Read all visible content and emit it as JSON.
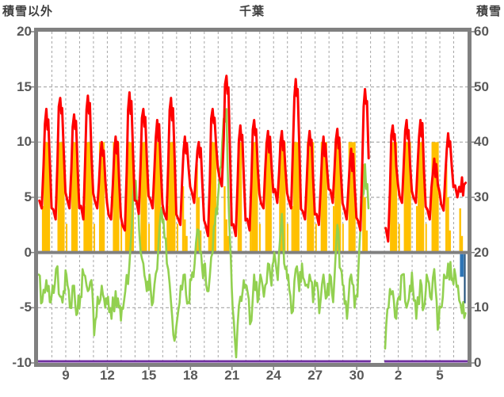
{
  "title": "千葉",
  "chart_data": {
    "type": "line",
    "title": "千葉",
    "x_unit": "day",
    "x_range": [
      "1/7",
      "2/6"
    ],
    "grid": true,
    "left_axis": {
      "label": "積雪以外",
      "min": -10,
      "max": 20,
      "ticks": [
        20,
        15,
        10,
        5,
        0,
        -5,
        -10
      ]
    },
    "right_axis": {
      "label": "積雪",
      "min": 0,
      "max": 60,
      "ticks": [
        60,
        50,
        40,
        30,
        20,
        10,
        0
      ]
    },
    "x_axis": {
      "tick_labels": [
        "9",
        "12",
        "15",
        "18",
        "21",
        "24",
        "27",
        "30",
        "2",
        "5"
      ],
      "tick_day_indices": [
        2,
        5,
        8,
        11,
        14,
        17,
        20,
        23,
        26,
        29
      ]
    },
    "colors": {
      "red_line": "#FF0000",
      "green_line": "#92D050",
      "yellow_bars": "#FFC000",
      "blue_bar": "#2E75B6",
      "dark_blue_bar": "#1F4E79",
      "purple_line": "#7030A0",
      "axis": "#808080",
      "gridline": "#A6A6A6",
      "tick_text": "#595959",
      "title_text": "#3F3F3F"
    },
    "series": [
      {
        "key": "red_line",
        "type": "line",
        "axis": "left"
      },
      {
        "key": "green_line",
        "type": "line",
        "axis": "left"
      },
      {
        "key": "yellow_bars",
        "type": "bar",
        "axis": "left",
        "bar_max": 10
      },
      {
        "key": "blue_bars",
        "type": "bar",
        "axis": "left",
        "direction": "down"
      },
      {
        "key": "purple_line",
        "type": "line",
        "axis": "right",
        "constant_value": 0
      }
    ],
    "missing_dates": [
      "1/31"
    ],
    "days": [
      {
        "date": "1/7",
        "tmax": 13,
        "tmin": 4,
        "dew": [
          -2,
          -4.5,
          -2.5,
          -4.5
        ],
        "sun": 9,
        "snow": 0
      },
      {
        "date": "1/8",
        "tmax": 14,
        "tmin": 3,
        "dew": [
          -3,
          -1.5,
          -4,
          -3.5
        ],
        "sun": 10,
        "snow": 0
      },
      {
        "date": "1/9",
        "tmax": 12.5,
        "tmin": 4,
        "dew": [
          -2,
          -5,
          -3,
          -5.5
        ],
        "sun": 9,
        "snow": 0
      },
      {
        "date": "1/10",
        "tmax": 14.2,
        "tmin": 3,
        "dew": [
          -4,
          -2,
          -3.5,
          -2.5
        ],
        "sun": 10,
        "snow": 0
      },
      {
        "date": "1/11",
        "tmax": 10,
        "tmin": 4,
        "dew": [
          -7.5,
          -4,
          -3,
          -5
        ],
        "sun": 8,
        "snow": 0
      },
      {
        "date": "1/12",
        "tmax": 10.5,
        "tmin": 3,
        "dew": [
          -4,
          -6,
          -3.5,
          -5
        ],
        "sun": 9,
        "snow": 0
      },
      {
        "date": "1/13",
        "tmax": 14.5,
        "tmin": 2,
        "dew": [
          -5,
          -3.5,
          -1,
          5
        ],
        "sun": 10,
        "snow": 0
      },
      {
        "date": "1/14",
        "tmax": 13,
        "tmin": 3.5,
        "dew": [
          6.5,
          2,
          -1,
          -3.5
        ],
        "sun": 9,
        "snow": 0
      },
      {
        "date": "1/15",
        "tmax": 12,
        "tmin": 4,
        "dew": [
          -2,
          -4.5,
          -1.5,
          3.5
        ],
        "sun": 9,
        "snow": 0
      },
      {
        "date": "1/16",
        "tmax": 14,
        "tmin": 3,
        "dew": [
          3,
          -1,
          -4.5,
          -8
        ],
        "sun": 10,
        "snow": 0
      },
      {
        "date": "1/17",
        "tmax": 10.5,
        "tmin": 2.5,
        "dew": [
          -6,
          -3,
          -2,
          -4.5
        ],
        "sun": 3,
        "snow": 0
      },
      {
        "date": "1/18",
        "tmax": 10,
        "tmin": 4.5,
        "dew": [
          -2.5,
          -1,
          2,
          -1.5
        ],
        "sun": 4,
        "snow": 0
      },
      {
        "date": "1/19",
        "tmax": 13,
        "tmin": 1.5,
        "dew": [
          -1,
          -3.5,
          0,
          4
        ],
        "sun": 9,
        "snow": 0
      },
      {
        "date": "1/20",
        "tmax": 16,
        "tmin": 6,
        "dew": [
          6,
          10,
          13,
          1
        ],
        "sun": 3,
        "snow": 0
      },
      {
        "date": "1/21",
        "tmax": 11.5,
        "tmin": 1.5,
        "dew": [
          -5,
          -9.5,
          -4,
          -2.5
        ],
        "sun": 6,
        "snow": 0
      },
      {
        "date": "1/22",
        "tmax": 12,
        "tmin": 2,
        "dew": [
          -3,
          -6.5,
          -2,
          -4.5
        ],
        "sun": 9,
        "snow": 0
      },
      {
        "date": "1/23",
        "tmax": 11,
        "tmin": 4,
        "dew": [
          -2,
          -4,
          -1,
          -3
        ],
        "sun": 9,
        "snow": 0
      },
      {
        "date": "1/24",
        "tmax": 11,
        "tmin": 4.5,
        "dew": [
          0,
          -2.5,
          3.5,
          -1.5
        ],
        "sun": 9,
        "snow": 0
      },
      {
        "date": "1/25",
        "tmax": 15.7,
        "tmin": 4,
        "dew": [
          -2,
          -5.5,
          -1.5,
          -3.5
        ],
        "sun": 9,
        "snow": 0
      },
      {
        "date": "1/26",
        "tmax": 11,
        "tmin": 3,
        "dew": [
          -1,
          -3,
          -2,
          -4.5
        ],
        "sun": 10,
        "snow": 0
      },
      {
        "date": "1/27",
        "tmax": 10.5,
        "tmin": 2.5,
        "dew": [
          -3,
          -5.5,
          -2,
          -4
        ],
        "sun": 9,
        "snow": 0
      },
      {
        "date": "1/28",
        "tmax": 11.2,
        "tmin": 4.5,
        "dew": [
          -2,
          -4.5,
          2.5,
          -1.5
        ],
        "sun": 9,
        "snow": 0
      },
      {
        "date": "1/29",
        "tmax": 9.4,
        "tmin": 3,
        "dew": [
          -3,
          -6,
          -2,
          -5
        ],
        "sun": 10,
        "snow": 0
      },
      {
        "date": "1/30",
        "tmax": 14.8,
        "tmin": 2,
        "dew": [
          -4,
          3,
          8,
          4
        ],
        "sun": 4,
        "snow": 0
      },
      {
        "date": "1/31",
        "missing": true
      },
      {
        "date": "2/1",
        "tmax": 11.5,
        "tmin": 1,
        "dew": [
          -8.7,
          -5,
          -3.5,
          -6
        ],
        "sun": 10,
        "snow": 0
      },
      {
        "date": "2/2",
        "tmax": 12,
        "tmin": 4.5,
        "dew": [
          -4,
          -2,
          -5,
          -3
        ],
        "sun": 10,
        "snow": 0
      },
      {
        "date": "2/3",
        "tmax": 12,
        "tmin": 4.5,
        "dew": [
          -3,
          -6,
          -2.5,
          -5
        ],
        "sun": 9,
        "snow": 0
      },
      {
        "date": "2/4",
        "tmax": 8.5,
        "tmin": 3,
        "dew": [
          -2,
          -4,
          -1.5,
          -7
        ],
        "sun": 10,
        "snow": 0
      },
      {
        "date": "2/5",
        "tmax": 10.8,
        "tmin": 3.8,
        "dew": [
          -5,
          -2,
          -1,
          -2.5
        ],
        "sun": 4,
        "snow": 0
      },
      {
        "date": "2/6",
        "tmax": 6.8,
        "tmin": 5,
        "dew": [
          -1.5,
          -3,
          -5.5,
          -5.5
        ],
        "sun": 2,
        "snow": 0,
        "end_frac": 0.9,
        "rain": [
          {
            "from": 0.45,
            "to": 0.72,
            "mm": 2.2,
            "shade": "blue"
          },
          {
            "from": 0.74,
            "to": 0.86,
            "mm": 4.6,
            "shade": "dark_blue"
          }
        ]
      }
    ]
  }
}
